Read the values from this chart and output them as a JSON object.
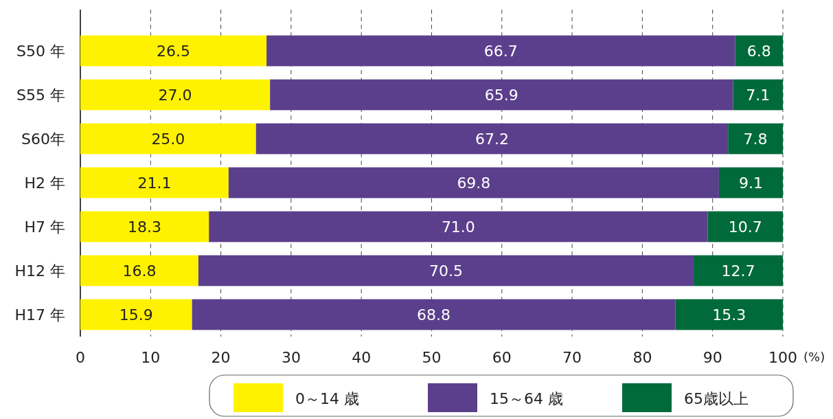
{
  "chart_data": {
    "type": "bar",
    "orientation": "horizontal",
    "stacked": true,
    "categories": [
      "S50 年",
      "S55 年",
      "S60年",
      "H2 年",
      "H7 年",
      "H12 年",
      "H17 年"
    ],
    "series": [
      {
        "name": "0～14 歳",
        "color": "#fff200",
        "values": [
          26.5,
          27.0,
          25.0,
          21.1,
          18.3,
          16.8,
          15.9
        ],
        "value_labels": [
          "26.5",
          "27.0",
          "25.0",
          "21.1",
          "18.3",
          "16.8",
          "15.9"
        ]
      },
      {
        "name": "15～64 歳",
        "color": "#5b3f8c",
        "values": [
          66.7,
          65.9,
          67.2,
          69.8,
          71.0,
          70.5,
          68.8
        ],
        "value_labels": [
          "66.7",
          "65.9",
          "67.2",
          "69.8",
          "71.0",
          "70.5",
          "68.8"
        ]
      },
      {
        "name": "65歳以上",
        "color": "#006a3a",
        "values": [
          6.8,
          7.1,
          7.8,
          9.1,
          10.7,
          12.7,
          15.3
        ],
        "value_labels": [
          "6.8",
          "7.1",
          "7.8",
          "9.1",
          "10.7",
          "12.7",
          "15.3"
        ]
      }
    ],
    "xlabel": "(%)",
    "xlim": [
      0,
      100
    ],
    "xticks": [
      0,
      10,
      20,
      30,
      40,
      50,
      60,
      70,
      80,
      90,
      100
    ],
    "grid": "x",
    "legend": "bottom"
  }
}
